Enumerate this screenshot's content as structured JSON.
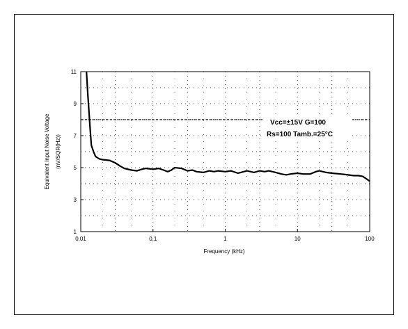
{
  "chart_data": {
    "type": "line",
    "title": "",
    "xlabel": "Frequency (kHz)",
    "ylabel": "Equivalent Input Noise Voltage",
    "ylabel2": "(nV/SQR(Hz))",
    "x_scale": "log",
    "xlim": [
      0.01,
      100
    ],
    "ylim": [
      1,
      11
    ],
    "x_ticks": [
      "0,01",
      "0,1",
      "1",
      "10",
      "100"
    ],
    "x_tick_values": [
      0.01,
      0.1,
      1,
      10,
      100
    ],
    "y_ticks": [
      "1",
      "3",
      "5",
      "7",
      "9",
      "11"
    ],
    "y_tick_values": [
      1,
      3,
      5,
      7,
      9,
      11
    ],
    "grid": true,
    "annotations": [
      "Vcc=±15V  G=100",
      "Rs=100  Tamb.=25°C"
    ],
    "series": [
      {
        "name": "",
        "x": [
          0.012,
          0.0125,
          0.013,
          0.0135,
          0.014,
          0.015,
          0.016,
          0.018,
          0.02,
          0.025,
          0.03,
          0.035,
          0.04,
          0.05,
          0.06,
          0.07,
          0.08,
          0.1,
          0.12,
          0.14,
          0.16,
          0.18,
          0.2,
          0.25,
          0.3,
          0.35,
          0.4,
          0.5,
          0.6,
          0.7,
          0.8,
          1.0,
          1.2,
          1.5,
          1.8,
          2.0,
          2.5,
          3.0,
          3.5,
          4.0,
          5.0,
          6.0,
          7.0,
          8.0,
          10.0,
          12.0,
          15.0,
          18.0,
          20.0,
          25.0,
          30.0,
          40.0,
          50.0,
          60.0,
          70.0,
          80.0,
          90.0,
          100.0
        ],
        "y": [
          11.0,
          9.6,
          8.5,
          7.4,
          6.4,
          6.0,
          5.7,
          5.55,
          5.5,
          5.45,
          5.3,
          5.1,
          4.95,
          4.85,
          4.8,
          4.9,
          4.95,
          4.9,
          4.95,
          4.85,
          4.75,
          4.85,
          5.0,
          4.95,
          4.8,
          4.85,
          4.75,
          4.7,
          4.8,
          4.75,
          4.8,
          4.75,
          4.8,
          4.65,
          4.75,
          4.8,
          4.7,
          4.8,
          4.75,
          4.8,
          4.7,
          4.6,
          4.55,
          4.6,
          4.65,
          4.6,
          4.6,
          4.75,
          4.8,
          4.7,
          4.65,
          4.6,
          4.55,
          4.5,
          4.5,
          4.45,
          4.3,
          4.15
        ]
      }
    ],
    "reference_line": {
      "y": 8
    }
  }
}
